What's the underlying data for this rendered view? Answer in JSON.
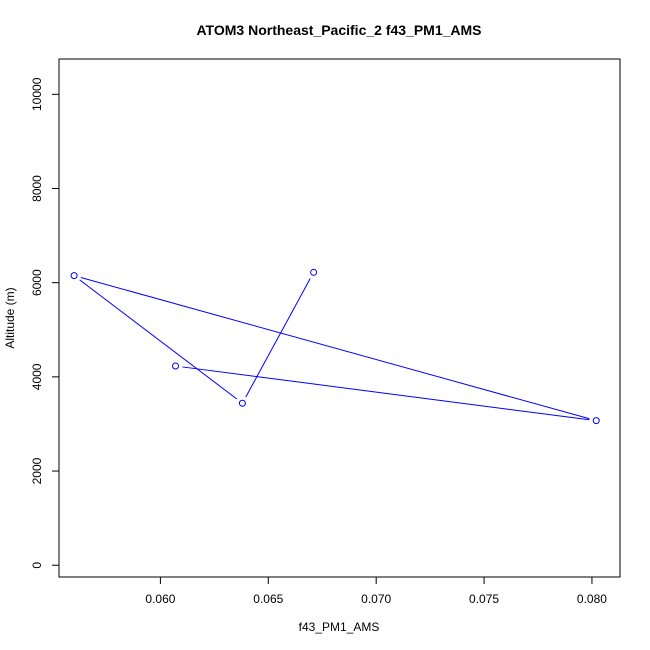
{
  "chart_data": {
    "type": "line",
    "title": "ATOM3 Northeast_Pacific_2 f43_PM1_AMS",
    "xlabel": "f43_PM1_AMS",
    "ylabel": "Altitude (m)",
    "xlim": [
      0.0553,
      0.0813
    ],
    "ylim": [
      -250,
      10750
    ],
    "x_ticks": [
      0.06,
      0.065,
      0.07,
      0.075,
      0.08
    ],
    "x_tick_labels": [
      "0.060",
      "0.065",
      "0.070",
      "0.075",
      "0.080"
    ],
    "y_ticks": [
      0,
      2000,
      4000,
      6000,
      8000,
      10000
    ],
    "y_tick_labels": [
      "0",
      "2000",
      "4000",
      "6000",
      "8000",
      "10000"
    ],
    "grid": false,
    "series": [
      {
        "color": "#0000ff",
        "x": [
          0.0671,
          0.0638,
          0.056,
          0.0802,
          0.0607
        ],
        "y": [
          6220,
          3440,
          6150,
          3070,
          4230
        ]
      }
    ]
  }
}
